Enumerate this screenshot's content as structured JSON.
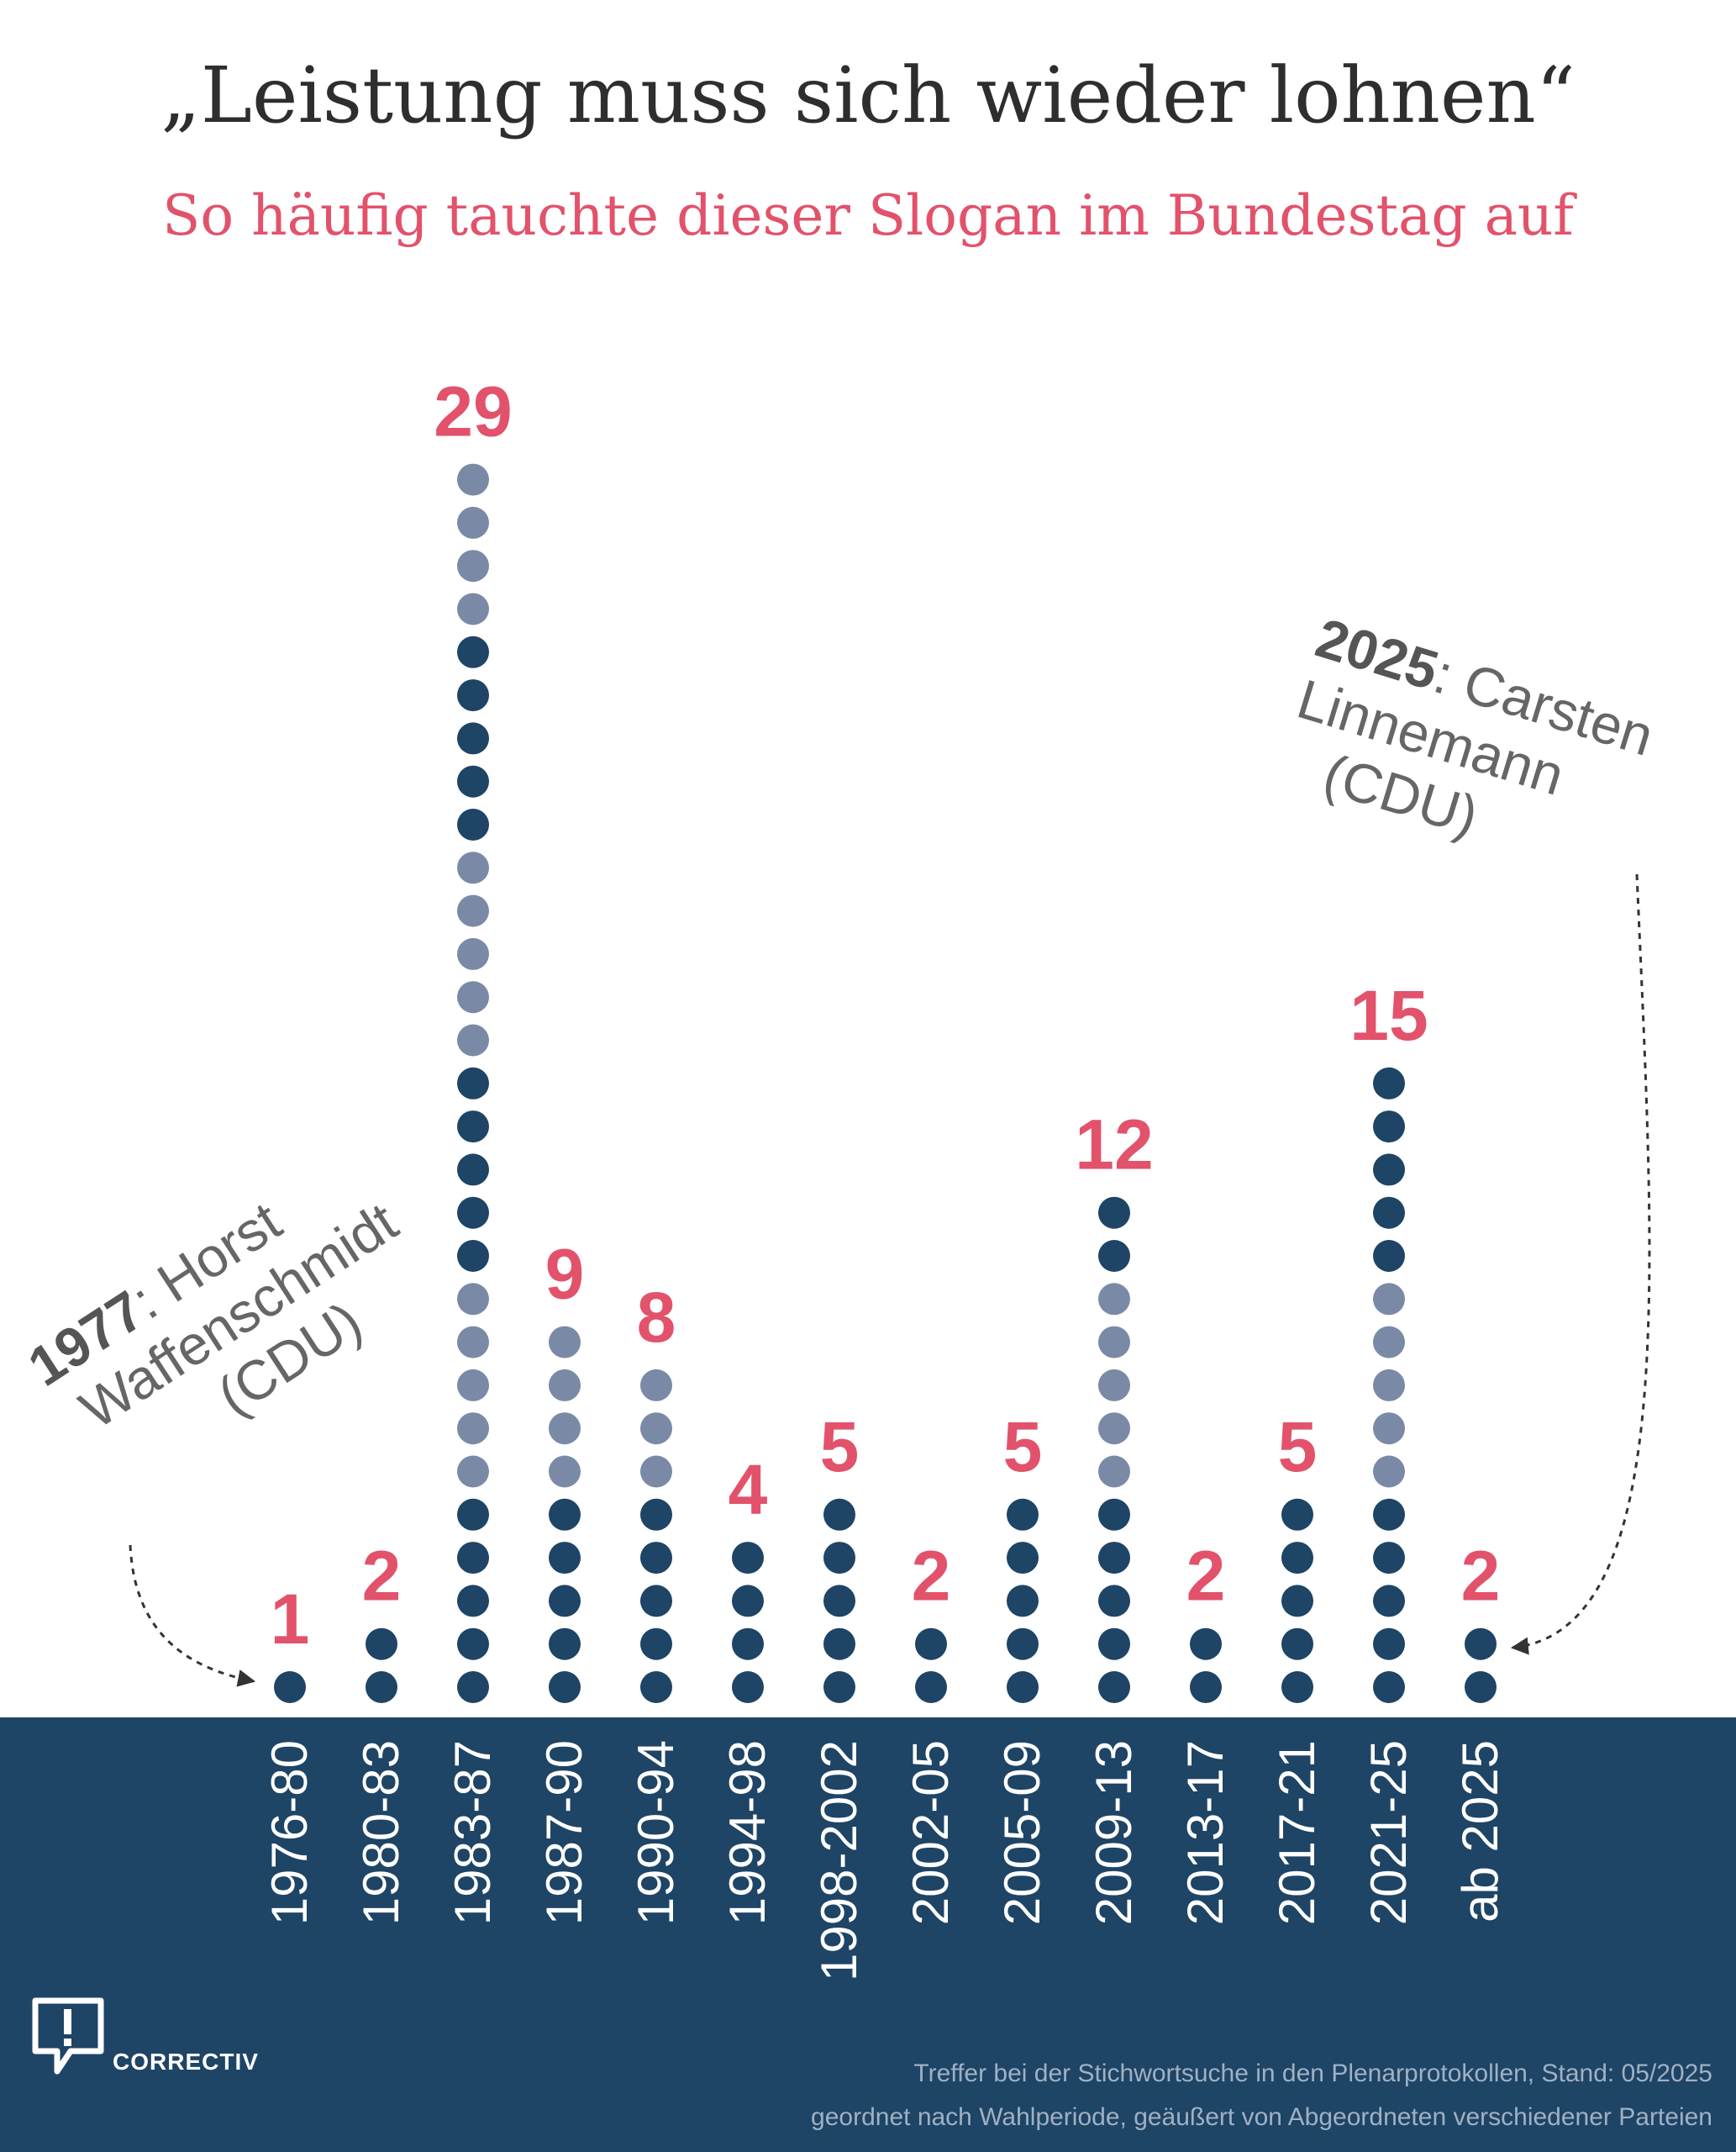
{
  "title": "„Leistung muss sich wieder lohnen“",
  "subtitle": "So häufig tauchte dieser Slogan im Bundestag auf",
  "chart_data": {
    "type": "dot",
    "categories": [
      "1976-80",
      "1980-83",
      "1983-87",
      "1987-90",
      "1990-94",
      "1994-98",
      "1998-2002",
      "2002-05",
      "2005-09",
      "2009-13",
      "2013-17",
      "2017-21",
      "2021-25",
      "ab 2025"
    ],
    "values": [
      1,
      2,
      29,
      9,
      8,
      4,
      5,
      2,
      5,
      12,
      2,
      5,
      15,
      2
    ],
    "value_labels": [
      "1",
      "2",
      "29",
      "9",
      "8",
      "4",
      "5",
      "2",
      "5",
      "12",
      "2",
      "5",
      "15",
      "2"
    ],
    "dot_colors_bottom_to_top": [
      [
        "dark"
      ],
      [
        "dark",
        "dark"
      ],
      [
        "dark",
        "dark",
        "dark",
        "dark",
        "dark",
        "light",
        "light",
        "light",
        "light",
        "light",
        "dark",
        "dark",
        "dark",
        "dark",
        "dark",
        "light",
        "light",
        "light",
        "light",
        "light",
        "dark",
        "dark",
        "dark",
        "dark",
        "dark",
        "light",
        "light",
        "light",
        "light"
      ],
      [
        "dark",
        "dark",
        "dark",
        "dark",
        "dark",
        "light",
        "light",
        "light",
        "light"
      ],
      [
        "dark",
        "dark",
        "dark",
        "dark",
        "dark",
        "light",
        "light",
        "light"
      ],
      [
        "dark",
        "dark",
        "dark",
        "dark"
      ],
      [
        "dark",
        "dark",
        "dark",
        "dark",
        "dark"
      ],
      [
        "dark",
        "dark"
      ],
      [
        "dark",
        "dark",
        "dark",
        "dark",
        "dark"
      ],
      [
        "dark",
        "dark",
        "dark",
        "dark",
        "dark",
        "light",
        "light",
        "light",
        "light",
        "light",
        "dark",
        "dark"
      ],
      [
        "dark",
        "dark"
      ],
      [
        "dark",
        "dark",
        "dark",
        "dark",
        "dark"
      ],
      [
        "dark",
        "dark",
        "dark",
        "dark",
        "dark",
        "light",
        "light",
        "light",
        "light",
        "light",
        "dark",
        "dark",
        "dark",
        "dark",
        "dark"
      ],
      [
        "dark",
        "dark"
      ]
    ],
    "colors": {
      "dark": "#1e4466",
      "light": "#7a8aa6",
      "label": "#e2526b",
      "band": "#1e4466"
    }
  },
  "annotations": {
    "left": {
      "year": "1977",
      "line1_rest": ": Horst",
      "line2": "Waffenschmidt",
      "line3": "(CDU)"
    },
    "right": {
      "year": "2025",
      "line1_rest": ": Carsten",
      "line2": "Linnemann",
      "line3": "(CDU)"
    }
  },
  "logo": {
    "text": "CORRECTIV"
  },
  "footnote": {
    "line1": "Treffer bei der Stichwortsuche in den Plenarprotokollen, Stand: 05/2025",
    "line2": "geordnet nach Wahlperiode, geäußert von Abgeordneten verschiedener Parteien"
  }
}
